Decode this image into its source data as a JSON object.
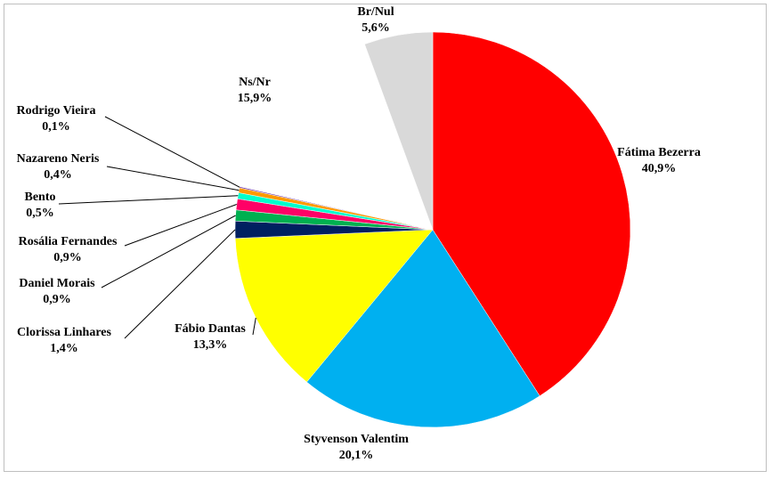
{
  "chart_data": {
    "type": "pie",
    "title": "",
    "slices": [
      {
        "label": "Fátima Bezerra",
        "value": 40.9,
        "value_label": "40,9%",
        "color": "#ff0000"
      },
      {
        "label": "Styvenson Valentim",
        "value": 20.1,
        "value_label": "20,1%",
        "color": "#00b0f0"
      },
      {
        "label": "Fábio Dantas",
        "value": 13.3,
        "value_label": "13,3%",
        "color": "#ffff00"
      },
      {
        "label": "Clorissa Linhares",
        "value": 1.4,
        "value_label": "1,4%",
        "color": "#002060"
      },
      {
        "label": "Daniel Morais",
        "value": 0.9,
        "value_label": "0,9%",
        "color": "#00b050"
      },
      {
        "label": "Rosália Fernandes",
        "value": 0.9,
        "value_label": "0,9%",
        "color": "#ff0066"
      },
      {
        "label": "Bento",
        "value": 0.5,
        "value_label": "0,5%",
        "color": "#00ffcc"
      },
      {
        "label": "Nazareno Neris",
        "value": 0.4,
        "value_label": "0,4%",
        "color": "#ff9900"
      },
      {
        "label": "Rodrigo Vieira",
        "value": 0.1,
        "value_label": "0,1%",
        "color": "#7030a0"
      },
      {
        "label": "Ns/Nr",
        "value": 15.9,
        "value_label": "15,9%",
        "color": "#ffffff"
      },
      {
        "label": "Br/Nul",
        "value": 5.6,
        "value_label": "5,6%",
        "color": "#d9d9d9"
      }
    ]
  }
}
